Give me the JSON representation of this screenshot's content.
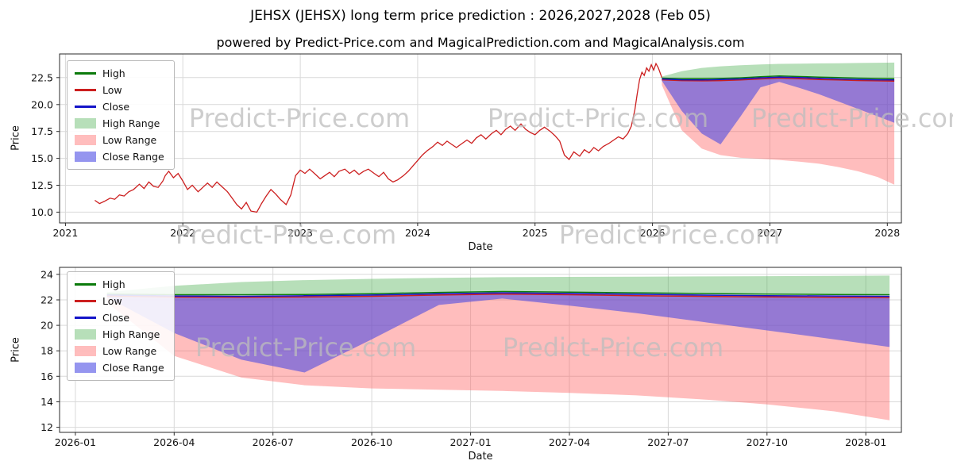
{
  "title": "JEHSX (JEHSX) long term price prediction : 2026,2027,2028 (Feb 05)",
  "subtitle": "powered by Predict-Price.com and MagicalPrediction.com and MagicalAnalysis.com",
  "watermark": {
    "text": "Predict-Price.com"
  },
  "legend": [
    "High",
    "Low",
    "Close",
    "High Range",
    "Low Range",
    "Close Range"
  ],
  "colors": {
    "high": "#0b7a0b",
    "low": "#cc1f1f",
    "close": "#1414c8",
    "high_range_fill": "rgba(76,175,80,0.40)",
    "low_range_fill": "rgba(255,82,82,0.38)",
    "close_range_fill": "rgba(72,72,228,0.58)",
    "grid": "#d9d9d9",
    "spine": "#2a2a2a",
    "watermark": "#bdbdbd"
  },
  "chart_data": [
    {
      "type": "line",
      "name": "long-term-history-and-prediction",
      "xlabel": "Date",
      "ylabel": "Price",
      "grid": true,
      "legend_location": "upper left",
      "xlim": [
        2020.95,
        2028.12
      ],
      "ylim": [
        9.0,
        24.7
      ],
      "x_tick_vals": [
        2021,
        2022,
        2023,
        2024,
        2025,
        2026,
        2027,
        2028
      ],
      "x_tick_labels": [
        "2021",
        "2022",
        "2023",
        "2024",
        "2025",
        "2026",
        "2027",
        "2028"
      ],
      "y_tick_vals": [
        10.0,
        12.5,
        15.0,
        17.5,
        20.0,
        22.5
      ],
      "y_tick_labels": [
        "10.0",
        "12.5",
        "15.0",
        "17.5",
        "20.0",
        "22.5"
      ],
      "historical": {
        "x": [
          2021.25,
          2021.29,
          2021.33,
          2021.38,
          2021.42,
          2021.46,
          2021.5,
          2021.54,
          2021.58,
          2021.63,
          2021.67,
          2021.71,
          2021.75,
          2021.79,
          2021.83,
          2021.85,
          2021.88,
          2021.92,
          2021.96,
          2022.0,
          2022.04,
          2022.08,
          2022.13,
          2022.17,
          2022.21,
          2022.25,
          2022.29,
          2022.33,
          2022.38,
          2022.42,
          2022.46,
          2022.5,
          2022.54,
          2022.58,
          2022.63,
          2022.67,
          2022.71,
          2022.75,
          2022.79,
          2022.83,
          2022.88,
          2022.92,
          2022.96,
          2023.0,
          2023.04,
          2023.08,
          2023.13,
          2023.17,
          2023.21,
          2023.25,
          2023.29,
          2023.33,
          2023.38,
          2023.42,
          2023.46,
          2023.5,
          2023.54,
          2023.58,
          2023.63,
          2023.67,
          2023.71,
          2023.75,
          2023.79,
          2023.83,
          2023.88,
          2023.92,
          2023.96,
          2024.0,
          2024.04,
          2024.08,
          2024.13,
          2024.17,
          2024.21,
          2024.25,
          2024.29,
          2024.33,
          2024.38,
          2024.42,
          2024.46,
          2024.5,
          2024.54,
          2024.58,
          2024.63,
          2024.67,
          2024.71,
          2024.75,
          2024.79,
          2024.83,
          2024.88,
          2024.92,
          2024.96,
          2025.0,
          2025.04,
          2025.08,
          2025.13,
          2025.17,
          2025.21,
          2025.25,
          2025.29,
          2025.33,
          2025.38,
          2025.42,
          2025.46,
          2025.5,
          2025.54,
          2025.58,
          2025.63,
          2025.67,
          2025.71,
          2025.75,
          2025.79,
          2025.82,
          2025.85,
          2025.87,
          2025.89,
          2025.91,
          2025.93,
          2025.95,
          2025.97,
          2025.99,
          2026.01,
          2026.03,
          2026.05,
          2026.08
        ],
        "y": [
          11.1,
          10.8,
          11.0,
          11.3,
          11.2,
          11.6,
          11.5,
          11.9,
          12.1,
          12.6,
          12.2,
          12.8,
          12.4,
          12.3,
          12.9,
          13.4,
          13.8,
          13.2,
          13.6,
          12.9,
          12.1,
          12.5,
          11.9,
          12.3,
          12.7,
          12.3,
          12.8,
          12.4,
          11.9,
          11.3,
          10.7,
          10.3,
          10.9,
          10.1,
          10.0,
          10.8,
          11.5,
          12.1,
          11.7,
          11.2,
          10.7,
          11.6,
          13.4,
          13.9,
          13.6,
          14.0,
          13.5,
          13.1,
          13.4,
          13.7,
          13.3,
          13.8,
          14.0,
          13.6,
          13.9,
          13.5,
          13.8,
          14.0,
          13.6,
          13.3,
          13.7,
          13.1,
          12.8,
          13.0,
          13.4,
          13.8,
          14.3,
          14.8,
          15.3,
          15.7,
          16.1,
          16.5,
          16.2,
          16.6,
          16.3,
          16.0,
          16.4,
          16.7,
          16.4,
          16.9,
          17.2,
          16.8,
          17.3,
          17.6,
          17.2,
          17.7,
          18.0,
          17.6,
          18.2,
          17.7,
          17.4,
          17.2,
          17.6,
          17.9,
          17.5,
          17.1,
          16.6,
          15.3,
          14.9,
          15.6,
          15.2,
          15.8,
          15.5,
          16.0,
          15.7,
          16.1,
          16.4,
          16.7,
          17.0,
          16.8,
          17.3,
          18.0,
          19.5,
          21.0,
          22.3,
          23.0,
          22.7,
          23.4,
          23.1,
          23.7,
          23.2,
          23.8,
          23.4,
          22.5
        ]
      },
      "forecast": {
        "x": [
          2026.08,
          2026.25,
          2026.42,
          2026.58,
          2026.75,
          2026.92,
          2027.08,
          2027.25,
          2027.42,
          2027.58,
          2027.75,
          2027.92,
          2028.06
        ],
        "high": [
          22.45,
          22.4,
          22.4,
          22.42,
          22.48,
          22.58,
          22.65,
          22.6,
          22.55,
          22.5,
          22.45,
          22.42,
          22.4
        ],
        "low": [
          22.3,
          22.22,
          22.2,
          22.22,
          22.28,
          22.38,
          22.45,
          22.4,
          22.33,
          22.28,
          22.23,
          22.2,
          22.18
        ],
        "close": [
          22.38,
          22.3,
          22.28,
          22.32,
          22.38,
          22.48,
          22.55,
          22.5,
          22.44,
          22.38,
          22.33,
          22.3,
          22.28
        ],
        "high_range_top": [
          22.6,
          23.1,
          23.4,
          23.55,
          23.65,
          23.72,
          23.78,
          23.8,
          23.82,
          23.84,
          23.86,
          23.88,
          23.9
        ],
        "close_range_bottom": [
          22.2,
          19.4,
          17.3,
          16.3,
          18.9,
          21.6,
          22.1,
          21.55,
          20.95,
          20.3,
          19.6,
          18.9,
          18.3
        ],
        "low_range_bottom": [
          21.8,
          17.6,
          15.9,
          15.3,
          15.05,
          14.95,
          14.85,
          14.7,
          14.5,
          14.2,
          13.8,
          13.25,
          12.55
        ]
      }
    },
    {
      "type": "line",
      "name": "prediction-detail-2026-2028",
      "xlabel": "Date",
      "ylabel": "Price",
      "grid": true,
      "legend_location": "upper left",
      "xlim": [
        2025.96,
        2028.09
      ],
      "ylim": [
        11.6,
        24.55
      ],
      "x_tick_vals": [
        2026.0,
        2026.25,
        2026.5,
        2026.75,
        2027.0,
        2027.25,
        2027.5,
        2027.75,
        2028.0
      ],
      "x_tick_labels": [
        "2026-01",
        "2026-04",
        "2026-07",
        "2026-10",
        "2027-01",
        "2027-04",
        "2027-07",
        "2027-10",
        "2028-01"
      ],
      "y_tick_vals": [
        12,
        14,
        16,
        18,
        20,
        22,
        24
      ],
      "y_tick_labels": [
        "12",
        "14",
        "16",
        "18",
        "20",
        "22",
        "24"
      ]
    }
  ]
}
